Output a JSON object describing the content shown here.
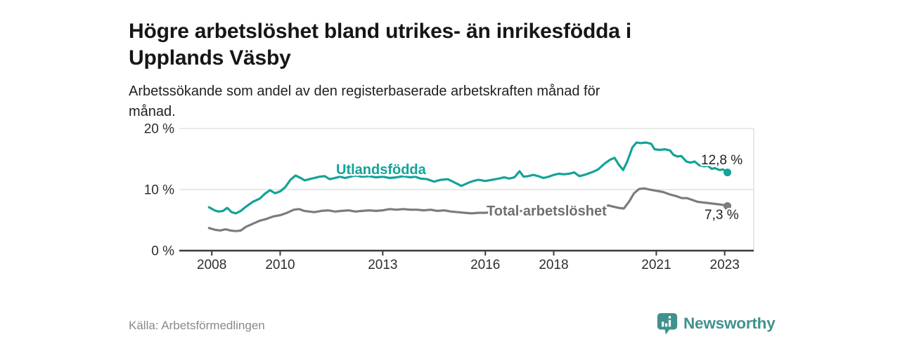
{
  "header": {
    "title_line1": "Högre arbetslöshet bland utrikes- än inrikesfödda i",
    "title_line2": "Upplands Väsby",
    "subtitle_line1": "Arbetssökande som andel av den registerbaserade arbetskraften månad för",
    "subtitle_line2": "månad."
  },
  "footer": {
    "source": "Källa: Arbetsförmedlingen",
    "brand_name": "Newsworthy",
    "brand_color": "#40928c",
    "brand_icon": "newsworthy-chart-pin-icon"
  },
  "chart_data": {
    "type": "line",
    "x_axis": {
      "unit": "year",
      "range": [
        2007.05,
        2023.85
      ],
      "ticks": [
        {
          "v": 2008,
          "label": "2008"
        },
        {
          "v": 2010,
          "label": "2010"
        },
        {
          "v": 2013,
          "label": "2013"
        },
        {
          "v": 2016,
          "label": "2016"
        },
        {
          "v": 2018,
          "label": "2018"
        },
        {
          "v": 2021,
          "label": "2021"
        },
        {
          "v": 2023,
          "label": "2023"
        }
      ]
    },
    "y_axis": {
      "unit": "percent",
      "range": [
        0,
        20
      ],
      "ticks": [
        {
          "v": 0,
          "label": "0 %"
        },
        {
          "v": 10,
          "label": "10 %"
        },
        {
          "v": 20,
          "label": "20 %"
        }
      ]
    },
    "grid": {
      "color": "#dadada",
      "y_values": [
        10,
        20
      ],
      "right_border": true
    },
    "axis_color": "#3a3a3c",
    "end_label_color": "#1f1f1f",
    "series": [
      {
        "name": "Utlandsfödda",
        "color": "#14a398",
        "label_color": "#14a398",
        "end_label": "12,8 %",
        "end_value": 12.8,
        "points": [
          [
            2007.92,
            7.1
          ],
          [
            2008.08,
            6.6
          ],
          [
            2008.2,
            6.4
          ],
          [
            2008.33,
            6.5
          ],
          [
            2008.45,
            7.0
          ],
          [
            2008.58,
            6.3
          ],
          [
            2008.7,
            6.1
          ],
          [
            2008.85,
            6.5
          ],
          [
            2009.0,
            7.2
          ],
          [
            2009.2,
            8.0
          ],
          [
            2009.4,
            8.5
          ],
          [
            2009.55,
            9.3
          ],
          [
            2009.7,
            9.9
          ],
          [
            2009.85,
            9.4
          ],
          [
            2010.0,
            9.7
          ],
          [
            2010.15,
            10.4
          ],
          [
            2010.3,
            11.6
          ],
          [
            2010.45,
            12.3
          ],
          [
            2010.6,
            11.9
          ],
          [
            2010.72,
            11.5
          ],
          [
            2010.85,
            11.7
          ],
          [
            2011.0,
            11.9
          ],
          [
            2011.15,
            12.1
          ],
          [
            2011.3,
            12.2
          ],
          [
            2011.45,
            11.7
          ],
          [
            2011.6,
            11.9
          ],
          [
            2011.75,
            12.1
          ],
          [
            2011.9,
            11.9
          ],
          [
            2012.05,
            12.1
          ],
          [
            2012.2,
            12.3
          ],
          [
            2012.4,
            12.1
          ],
          [
            2012.6,
            12.2
          ],
          [
            2012.8,
            12.0
          ],
          [
            2013.0,
            12.1
          ],
          [
            2013.2,
            11.9
          ],
          [
            2013.4,
            12.0
          ],
          [
            2013.6,
            12.2
          ],
          [
            2013.8,
            12.0
          ],
          [
            2013.95,
            12.1
          ],
          [
            2014.1,
            11.8
          ],
          [
            2014.3,
            11.7
          ],
          [
            2014.5,
            11.3
          ],
          [
            2014.7,
            11.6
          ],
          [
            2014.9,
            11.7
          ],
          [
            2015.05,
            11.3
          ],
          [
            2015.3,
            10.6
          ],
          [
            2015.5,
            11.1
          ],
          [
            2015.65,
            11.4
          ],
          [
            2015.8,
            11.6
          ],
          [
            2016.0,
            11.4
          ],
          [
            2016.2,
            11.6
          ],
          [
            2016.4,
            11.8
          ],
          [
            2016.55,
            12.0
          ],
          [
            2016.7,
            11.8
          ],
          [
            2016.85,
            12.0
          ],
          [
            2017.0,
            13.0
          ],
          [
            2017.12,
            12.1
          ],
          [
            2017.25,
            12.2
          ],
          [
            2017.4,
            12.4
          ],
          [
            2017.55,
            12.2
          ],
          [
            2017.7,
            11.9
          ],
          [
            2017.85,
            12.1
          ],
          [
            2018.0,
            12.4
          ],
          [
            2018.15,
            12.6
          ],
          [
            2018.3,
            12.5
          ],
          [
            2018.45,
            12.6
          ],
          [
            2018.6,
            12.8
          ],
          [
            2018.75,
            12.2
          ],
          [
            2018.9,
            12.4
          ],
          [
            2019.0,
            12.6
          ],
          [
            2019.15,
            12.9
          ],
          [
            2019.3,
            13.3
          ],
          [
            2019.5,
            14.3
          ],
          [
            2019.65,
            14.9
          ],
          [
            2019.78,
            15.2
          ],
          [
            2019.9,
            14.1
          ],
          [
            2020.03,
            13.2
          ],
          [
            2020.15,
            14.6
          ],
          [
            2020.3,
            16.9
          ],
          [
            2020.42,
            17.7
          ],
          [
            2020.55,
            17.6
          ],
          [
            2020.7,
            17.7
          ],
          [
            2020.85,
            17.5
          ],
          [
            2020.95,
            16.6
          ],
          [
            2021.1,
            16.5
          ],
          [
            2021.25,
            16.6
          ],
          [
            2021.4,
            16.4
          ],
          [
            2021.5,
            15.7
          ],
          [
            2021.62,
            15.4
          ],
          [
            2021.73,
            15.5
          ],
          [
            2021.88,
            14.6
          ],
          [
            2022.0,
            14.4
          ],
          [
            2022.12,
            14.6
          ],
          [
            2022.25,
            14.0
          ],
          [
            2022.4,
            13.8
          ],
          [
            2022.5,
            13.9
          ],
          [
            2022.62,
            13.4
          ],
          [
            2022.72,
            13.5
          ],
          [
            2022.85,
            13.2
          ],
          [
            2022.95,
            13.3
          ],
          [
            2023.08,
            12.8
          ]
        ]
      },
      {
        "name": "Total arbetslöshet",
        "color": "#7c7c7c",
        "label_color": "#6f6f6f",
        "end_label": "7,3 %",
        "end_value": 7.3,
        "points": [
          [
            2007.92,
            3.7
          ],
          [
            2008.1,
            3.4
          ],
          [
            2008.25,
            3.3
          ],
          [
            2008.4,
            3.5
          ],
          [
            2008.55,
            3.3
          ],
          [
            2008.7,
            3.2
          ],
          [
            2008.85,
            3.3
          ],
          [
            2009.0,
            3.9
          ],
          [
            2009.2,
            4.4
          ],
          [
            2009.4,
            4.9
          ],
          [
            2009.6,
            5.2
          ],
          [
            2009.8,
            5.6
          ],
          [
            2010.0,
            5.8
          ],
          [
            2010.2,
            6.2
          ],
          [
            2010.4,
            6.7
          ],
          [
            2010.55,
            6.8
          ],
          [
            2010.7,
            6.5
          ],
          [
            2010.85,
            6.4
          ],
          [
            2011.0,
            6.3
          ],
          [
            2011.2,
            6.5
          ],
          [
            2011.4,
            6.6
          ],
          [
            2011.6,
            6.4
          ],
          [
            2011.8,
            6.5
          ],
          [
            2012.0,
            6.6
          ],
          [
            2012.2,
            6.4
          ],
          [
            2012.4,
            6.5
          ],
          [
            2012.6,
            6.6
          ],
          [
            2012.8,
            6.5
          ],
          [
            2013.0,
            6.6
          ],
          [
            2013.2,
            6.8
          ],
          [
            2013.4,
            6.7
          ],
          [
            2013.6,
            6.8
          ],
          [
            2013.8,
            6.7
          ],
          [
            2014.0,
            6.7
          ],
          [
            2014.2,
            6.6
          ],
          [
            2014.4,
            6.7
          ],
          [
            2014.6,
            6.5
          ],
          [
            2014.8,
            6.6
          ],
          [
            2015.0,
            6.4
          ],
          [
            2015.2,
            6.3
          ],
          [
            2015.4,
            6.2
          ],
          [
            2015.6,
            6.1
          ],
          [
            2015.8,
            6.2
          ],
          [
            2016.0,
            6.2
          ],
          [
            2016.2,
            6.3
          ],
          [
            2016.4,
            6.2
          ],
          [
            2016.6,
            6.3
          ],
          [
            2016.8,
            6.3
          ],
          [
            2017.0,
            6.5
          ],
          [
            2017.2,
            6.4
          ],
          [
            2017.4,
            6.5
          ],
          [
            2017.6,
            6.4
          ],
          [
            2017.8,
            6.3
          ],
          [
            2018.0,
            6.4
          ],
          [
            2018.2,
            6.5
          ],
          [
            2018.4,
            6.4
          ],
          [
            2018.6,
            6.4
          ],
          [
            2018.8,
            6.4
          ],
          [
            2019.0,
            6.5
          ],
          [
            2019.2,
            6.6
          ],
          [
            2019.4,
            7.0
          ],
          [
            2019.6,
            7.4
          ],
          [
            2019.75,
            7.2
          ],
          [
            2019.9,
            7.0
          ],
          [
            2020.05,
            6.9
          ],
          [
            2020.2,
            8.0
          ],
          [
            2020.35,
            9.4
          ],
          [
            2020.5,
            10.1
          ],
          [
            2020.65,
            10.2
          ],
          [
            2020.8,
            10.0
          ],
          [
            2021.0,
            9.8
          ],
          [
            2021.2,
            9.6
          ],
          [
            2021.4,
            9.2
          ],
          [
            2021.6,
            8.9
          ],
          [
            2021.75,
            8.6
          ],
          [
            2021.9,
            8.6
          ],
          [
            2022.05,
            8.3
          ],
          [
            2022.2,
            8.0
          ],
          [
            2022.35,
            7.9
          ],
          [
            2022.5,
            7.8
          ],
          [
            2022.65,
            7.7
          ],
          [
            2022.8,
            7.6
          ],
          [
            2022.95,
            7.5
          ],
          [
            2023.08,
            7.3
          ]
        ]
      }
    ]
  }
}
